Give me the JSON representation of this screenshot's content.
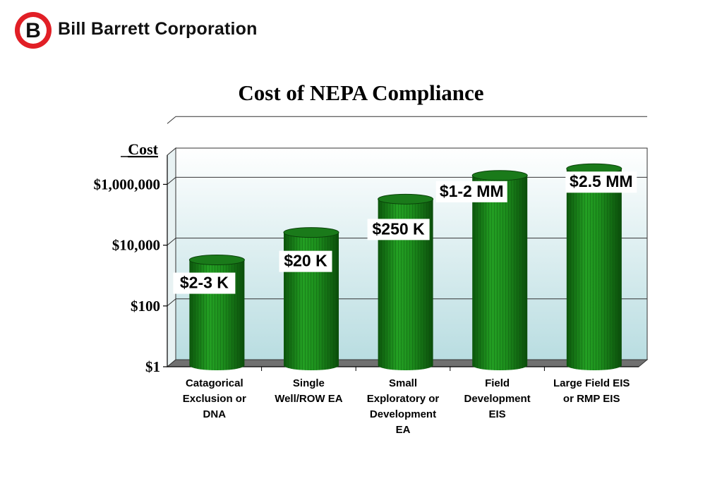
{
  "header": {
    "logo_letter": "B",
    "company_name": "Bill Barrett Corporation"
  },
  "colors": {
    "bar": "#1f8c1f",
    "bar_dark": "#0d5a0d",
    "bar_top": "#1a7a1a",
    "plot_bg_top": "#ffffff",
    "plot_bg_bottom": "#b9dde1",
    "floor": "#707070",
    "logo_red": "#e11f26"
  },
  "chart_data": {
    "type": "bar",
    "title": "Cost of NEPA Compliance",
    "ylabel": "Cost",
    "yscale": "log",
    "ylim": [
      1,
      100000000
    ],
    "yticks": [
      1,
      100,
      10000,
      1000000
    ],
    "ytick_labels": [
      "$1",
      "$100",
      "$10,000",
      "$1,000,000"
    ],
    "categories": [
      [
        "Catagorical",
        "Exclusion or",
        "DNA"
      ],
      [
        "Single",
        "Well/ROW EA"
      ],
      [
        "Small",
        "Exploratory or",
        "Development",
        "EA"
      ],
      [
        "Field",
        "Development",
        "EIS"
      ],
      [
        "Large Field EIS",
        "or RMP EIS"
      ]
    ],
    "values": [
      2500,
      20000,
      250000,
      1500000,
      2500000
    ],
    "data_labels": [
      "$2-3 K",
      "$20 K",
      "$250 K",
      "$1-2 MM",
      "$2.5 MM"
    ],
    "grid": true,
    "legend": "none"
  }
}
